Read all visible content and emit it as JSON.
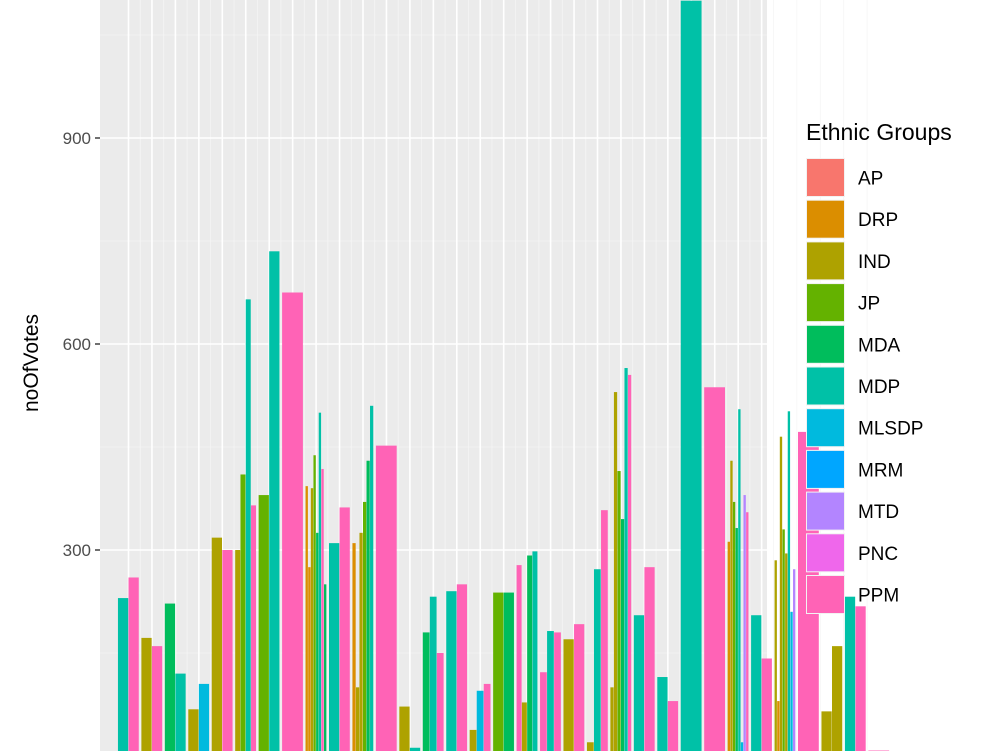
{
  "chart_data": {
    "type": "bar",
    "ylabel": "noOfVotes",
    "ylim": [
      -5,
      1100
    ],
    "yticks": [
      300,
      600,
      900
    ],
    "grid": true,
    "legend": {
      "title": "Ethnic Groups",
      "position": "right",
      "entries": [
        {
          "name": "AP",
          "color": "#F8766D"
        },
        {
          "name": "DRP",
          "color": "#DB8E00"
        },
        {
          "name": "IND",
          "color": "#AEA200"
        },
        {
          "name": "JP",
          "color": "#64B200"
        },
        {
          "name": "MDA",
          "color": "#00BD5C"
        },
        {
          "name": "MDP",
          "color": "#00C1A7"
        },
        {
          "name": "MLSDP",
          "color": "#00BADE"
        },
        {
          "name": "MRM",
          "color": "#00A6FF"
        },
        {
          "name": "MTD",
          "color": "#B385FF"
        },
        {
          "name": "PNC",
          "color": "#EF67EB"
        },
        {
          "name": "PPM",
          "color": "#FF63B6"
        }
      ]
    },
    "bars": [
      {
        "group": 1,
        "slot": 0,
        "of": 2,
        "party": "MDP",
        "value": 230
      },
      {
        "group": 1,
        "slot": 1,
        "of": 2,
        "party": "PPM",
        "value": 260
      },
      {
        "group": 2,
        "slot": 0,
        "of": 2,
        "party": "IND",
        "value": 172
      },
      {
        "group": 2,
        "slot": 1,
        "of": 2,
        "party": "PPM",
        "value": 160
      },
      {
        "group": 3,
        "slot": 0,
        "of": 2,
        "party": "MDA",
        "value": 222
      },
      {
        "group": 3,
        "slot": 1,
        "of": 2,
        "party": "MDP",
        "value": 120
      },
      {
        "group": 4,
        "slot": 0,
        "of": 2,
        "party": "IND",
        "value": 68
      },
      {
        "group": 4,
        "slot": 1,
        "of": 2,
        "party": "MLSDP",
        "value": 105
      },
      {
        "group": 5,
        "slot": 0,
        "of": 2,
        "party": "IND",
        "value": 318
      },
      {
        "group": 5,
        "slot": 1,
        "of": 2,
        "party": "PPM",
        "value": 300
      },
      {
        "group": 6,
        "slot": 0,
        "of": 4,
        "party": "IND",
        "value": 300
      },
      {
        "group": 6,
        "slot": 1,
        "of": 4,
        "party": "JP",
        "value": 410
      },
      {
        "group": 6,
        "slot": 2,
        "of": 4,
        "party": "MDP",
        "value": 665
      },
      {
        "group": 6,
        "slot": 3,
        "of": 4,
        "party": "PPM",
        "value": 365
      },
      {
        "group": 7,
        "slot": 0,
        "of": 2,
        "party": "JP",
        "value": 380
      },
      {
        "group": 7,
        "slot": 1,
        "of": 2,
        "party": "MDP",
        "value": 735
      },
      {
        "group": 8,
        "slot": 0,
        "of": 1,
        "party": "PPM",
        "value": 675
      },
      {
        "group": 9,
        "slot": 0,
        "of": 8,
        "party": "DRP",
        "value": 393
      },
      {
        "group": 9,
        "slot": 1,
        "of": 8,
        "party": "DRP",
        "value": 275
      },
      {
        "group": 9,
        "slot": 2,
        "of": 8,
        "party": "IND",
        "value": 390
      },
      {
        "group": 9,
        "slot": 3,
        "of": 8,
        "party": "JP",
        "value": 438
      },
      {
        "group": 9,
        "slot": 4,
        "of": 8,
        "party": "MDA",
        "value": 325
      },
      {
        "group": 9,
        "slot": 5,
        "of": 8,
        "party": "MDP",
        "value": 500
      },
      {
        "group": 9,
        "slot": 6,
        "of": 8,
        "party": "PPM",
        "value": 418
      },
      {
        "group": 9,
        "slot": 7,
        "of": 8,
        "party": "MDA",
        "value": 250
      },
      {
        "group": 10,
        "slot": 0,
        "of": 2,
        "party": "MDP",
        "value": 310
      },
      {
        "group": 10,
        "slot": 1,
        "of": 2,
        "party": "PPM",
        "value": 362
      },
      {
        "group": 11,
        "slot": 0,
        "of": 6,
        "party": "DRP",
        "value": 310
      },
      {
        "group": 11,
        "slot": 1,
        "of": 6,
        "party": "IND",
        "value": 100
      },
      {
        "group": 11,
        "slot": 2,
        "of": 6,
        "party": "IND",
        "value": 325
      },
      {
        "group": 11,
        "slot": 3,
        "of": 6,
        "party": "JP",
        "value": 370
      },
      {
        "group": 11,
        "slot": 4,
        "of": 6,
        "party": "MDA",
        "value": 430
      },
      {
        "group": 11,
        "slot": 5,
        "of": 6,
        "party": "MDP",
        "value": 510
      },
      {
        "group": 12,
        "slot": 0,
        "of": 1,
        "party": "PPM",
        "value": 452
      },
      {
        "group": 13,
        "slot": 0,
        "of": 2,
        "party": "IND",
        "value": 72
      },
      {
        "group": 13,
        "slot": 1,
        "of": 2,
        "party": "MDP",
        "value": 12
      },
      {
        "group": 14,
        "slot": 0,
        "of": 3,
        "party": "MDA",
        "value": 180
      },
      {
        "group": 14,
        "slot": 1,
        "of": 3,
        "party": "MDP",
        "value": 232
      },
      {
        "group": 14,
        "slot": 2,
        "of": 3,
        "party": "PPM",
        "value": 150
      },
      {
        "group": 15,
        "slot": 0,
        "of": 2,
        "party": "MDP",
        "value": 240
      },
      {
        "group": 15,
        "slot": 1,
        "of": 2,
        "party": "PPM",
        "value": 250
      },
      {
        "group": 16,
        "slot": 0,
        "of": 3,
        "party": "IND",
        "value": 38
      },
      {
        "group": 16,
        "slot": 1,
        "of": 3,
        "party": "MLSDP",
        "value": 95
      },
      {
        "group": 16,
        "slot": 2,
        "of": 3,
        "party": "PPM",
        "value": 105
      },
      {
        "group": 17,
        "slot": 0,
        "of": 2,
        "party": "JP",
        "value": 238
      },
      {
        "group": 17,
        "slot": 1,
        "of": 2,
        "party": "MDA",
        "value": 238
      },
      {
        "group": 18,
        "slot": 0,
        "of": 4,
        "party": "PPM",
        "value": 278
      },
      {
        "group": 18,
        "slot": 1,
        "of": 4,
        "party": "IND",
        "value": 78
      },
      {
        "group": 18,
        "slot": 2,
        "of": 4,
        "party": "MDA",
        "value": 292
      },
      {
        "group": 18,
        "slot": 3,
        "of": 4,
        "party": "MDP",
        "value": 298
      },
      {
        "group": 19,
        "slot": 0,
        "of": 3,
        "party": "PPM",
        "value": 122
      },
      {
        "group": 19,
        "slot": 1,
        "of": 3,
        "party": "MDP",
        "value": 182
      },
      {
        "group": 19,
        "slot": 2,
        "of": 3,
        "party": "PPM",
        "value": 180
      },
      {
        "group": 20,
        "slot": 0,
        "of": 2,
        "party": "IND",
        "value": 170
      },
      {
        "group": 20,
        "slot": 1,
        "of": 2,
        "party": "PPM",
        "value": 192
      },
      {
        "group": 21,
        "slot": 0,
        "of": 3,
        "party": "IND",
        "value": 20
      },
      {
        "group": 21,
        "slot": 1,
        "of": 3,
        "party": "MDP",
        "value": 272
      },
      {
        "group": 21,
        "slot": 2,
        "of": 3,
        "party": "PPM",
        "value": 358
      },
      {
        "group": 22,
        "slot": 0,
        "of": 6,
        "party": "IND",
        "value": 100
      },
      {
        "group": 22,
        "slot": 1,
        "of": 6,
        "party": "IND",
        "value": 530
      },
      {
        "group": 22,
        "slot": 2,
        "of": 6,
        "party": "JP",
        "value": 415
      },
      {
        "group": 22,
        "slot": 3,
        "of": 6,
        "party": "MDA",
        "value": 345
      },
      {
        "group": 22,
        "slot": 4,
        "of": 6,
        "party": "MDP",
        "value": 565
      },
      {
        "group": 22,
        "slot": 5,
        "of": 6,
        "party": "PPM",
        "value": 555
      },
      {
        "group": 23,
        "slot": 0,
        "of": 2,
        "party": "MDP",
        "value": 205
      },
      {
        "group": 23,
        "slot": 1,
        "of": 2,
        "party": "PPM",
        "value": 275
      },
      {
        "group": 24,
        "slot": 0,
        "of": 2,
        "party": "MDP",
        "value": 115
      },
      {
        "group": 24,
        "slot": 1,
        "of": 2,
        "party": "PPM",
        "value": 80
      },
      {
        "group": 25,
        "slot": 0,
        "of": 1,
        "party": "MDP",
        "value": 1100
      },
      {
        "group": 26,
        "slot": 0,
        "of": 1,
        "party": "PPM",
        "value": 537
      },
      {
        "group": 27,
        "slot": 0,
        "of": 8,
        "party": "DRP",
        "value": 312
      },
      {
        "group": 27,
        "slot": 1,
        "of": 8,
        "party": "IND",
        "value": 430
      },
      {
        "group": 27,
        "slot": 2,
        "of": 8,
        "party": "JP",
        "value": 370
      },
      {
        "group": 27,
        "slot": 3,
        "of": 8,
        "party": "MDA",
        "value": 332
      },
      {
        "group": 27,
        "slot": 4,
        "of": 8,
        "party": "MDP",
        "value": 505
      },
      {
        "group": 27,
        "slot": 5,
        "of": 8,
        "party": "MLSDP",
        "value": 20
      },
      {
        "group": 27,
        "slot": 6,
        "of": 8,
        "party": "MTD",
        "value": 380
      },
      {
        "group": 27,
        "slot": 7,
        "of": 8,
        "party": "PPM",
        "value": 355
      },
      {
        "group": 28,
        "slot": 0,
        "of": 2,
        "party": "MDP",
        "value": 205
      },
      {
        "group": 28,
        "slot": 1,
        "of": 2,
        "party": "PPM",
        "value": 142
      },
      {
        "group": 29,
        "slot": 0,
        "of": 8,
        "party": "IND",
        "value": 285
      },
      {
        "group": 29,
        "slot": 1,
        "of": 8,
        "party": "DRP",
        "value": 80
      },
      {
        "group": 29,
        "slot": 2,
        "of": 8,
        "party": "IND",
        "value": 465
      },
      {
        "group": 29,
        "slot": 3,
        "of": 8,
        "party": "JP",
        "value": 330
      },
      {
        "group": 29,
        "slot": 4,
        "of": 8,
        "party": "IND",
        "value": 295
      },
      {
        "group": 29,
        "slot": 5,
        "of": 8,
        "party": "MDP",
        "value": 502
      },
      {
        "group": 29,
        "slot": 6,
        "of": 8,
        "party": "MLSDP",
        "value": 210
      },
      {
        "group": 29,
        "slot": 7,
        "of": 8,
        "party": "MTD",
        "value": 272
      },
      {
        "group": 30,
        "slot": 0,
        "of": 1,
        "party": "PPM",
        "value": 472
      },
      {
        "group": 31,
        "slot": 0,
        "of": 2,
        "party": "IND",
        "value": 65
      },
      {
        "group": 31,
        "slot": 1,
        "of": 2,
        "party": "IND",
        "value": 160
      },
      {
        "group": 32,
        "slot": 0,
        "of": 2,
        "party": "MDP",
        "value": 232
      },
      {
        "group": 32,
        "slot": 1,
        "of": 2,
        "party": "PPM",
        "value": 218
      },
      {
        "group": 33,
        "slot": 0,
        "of": 1,
        "party": "PPM",
        "value": 8
      }
    ]
  }
}
